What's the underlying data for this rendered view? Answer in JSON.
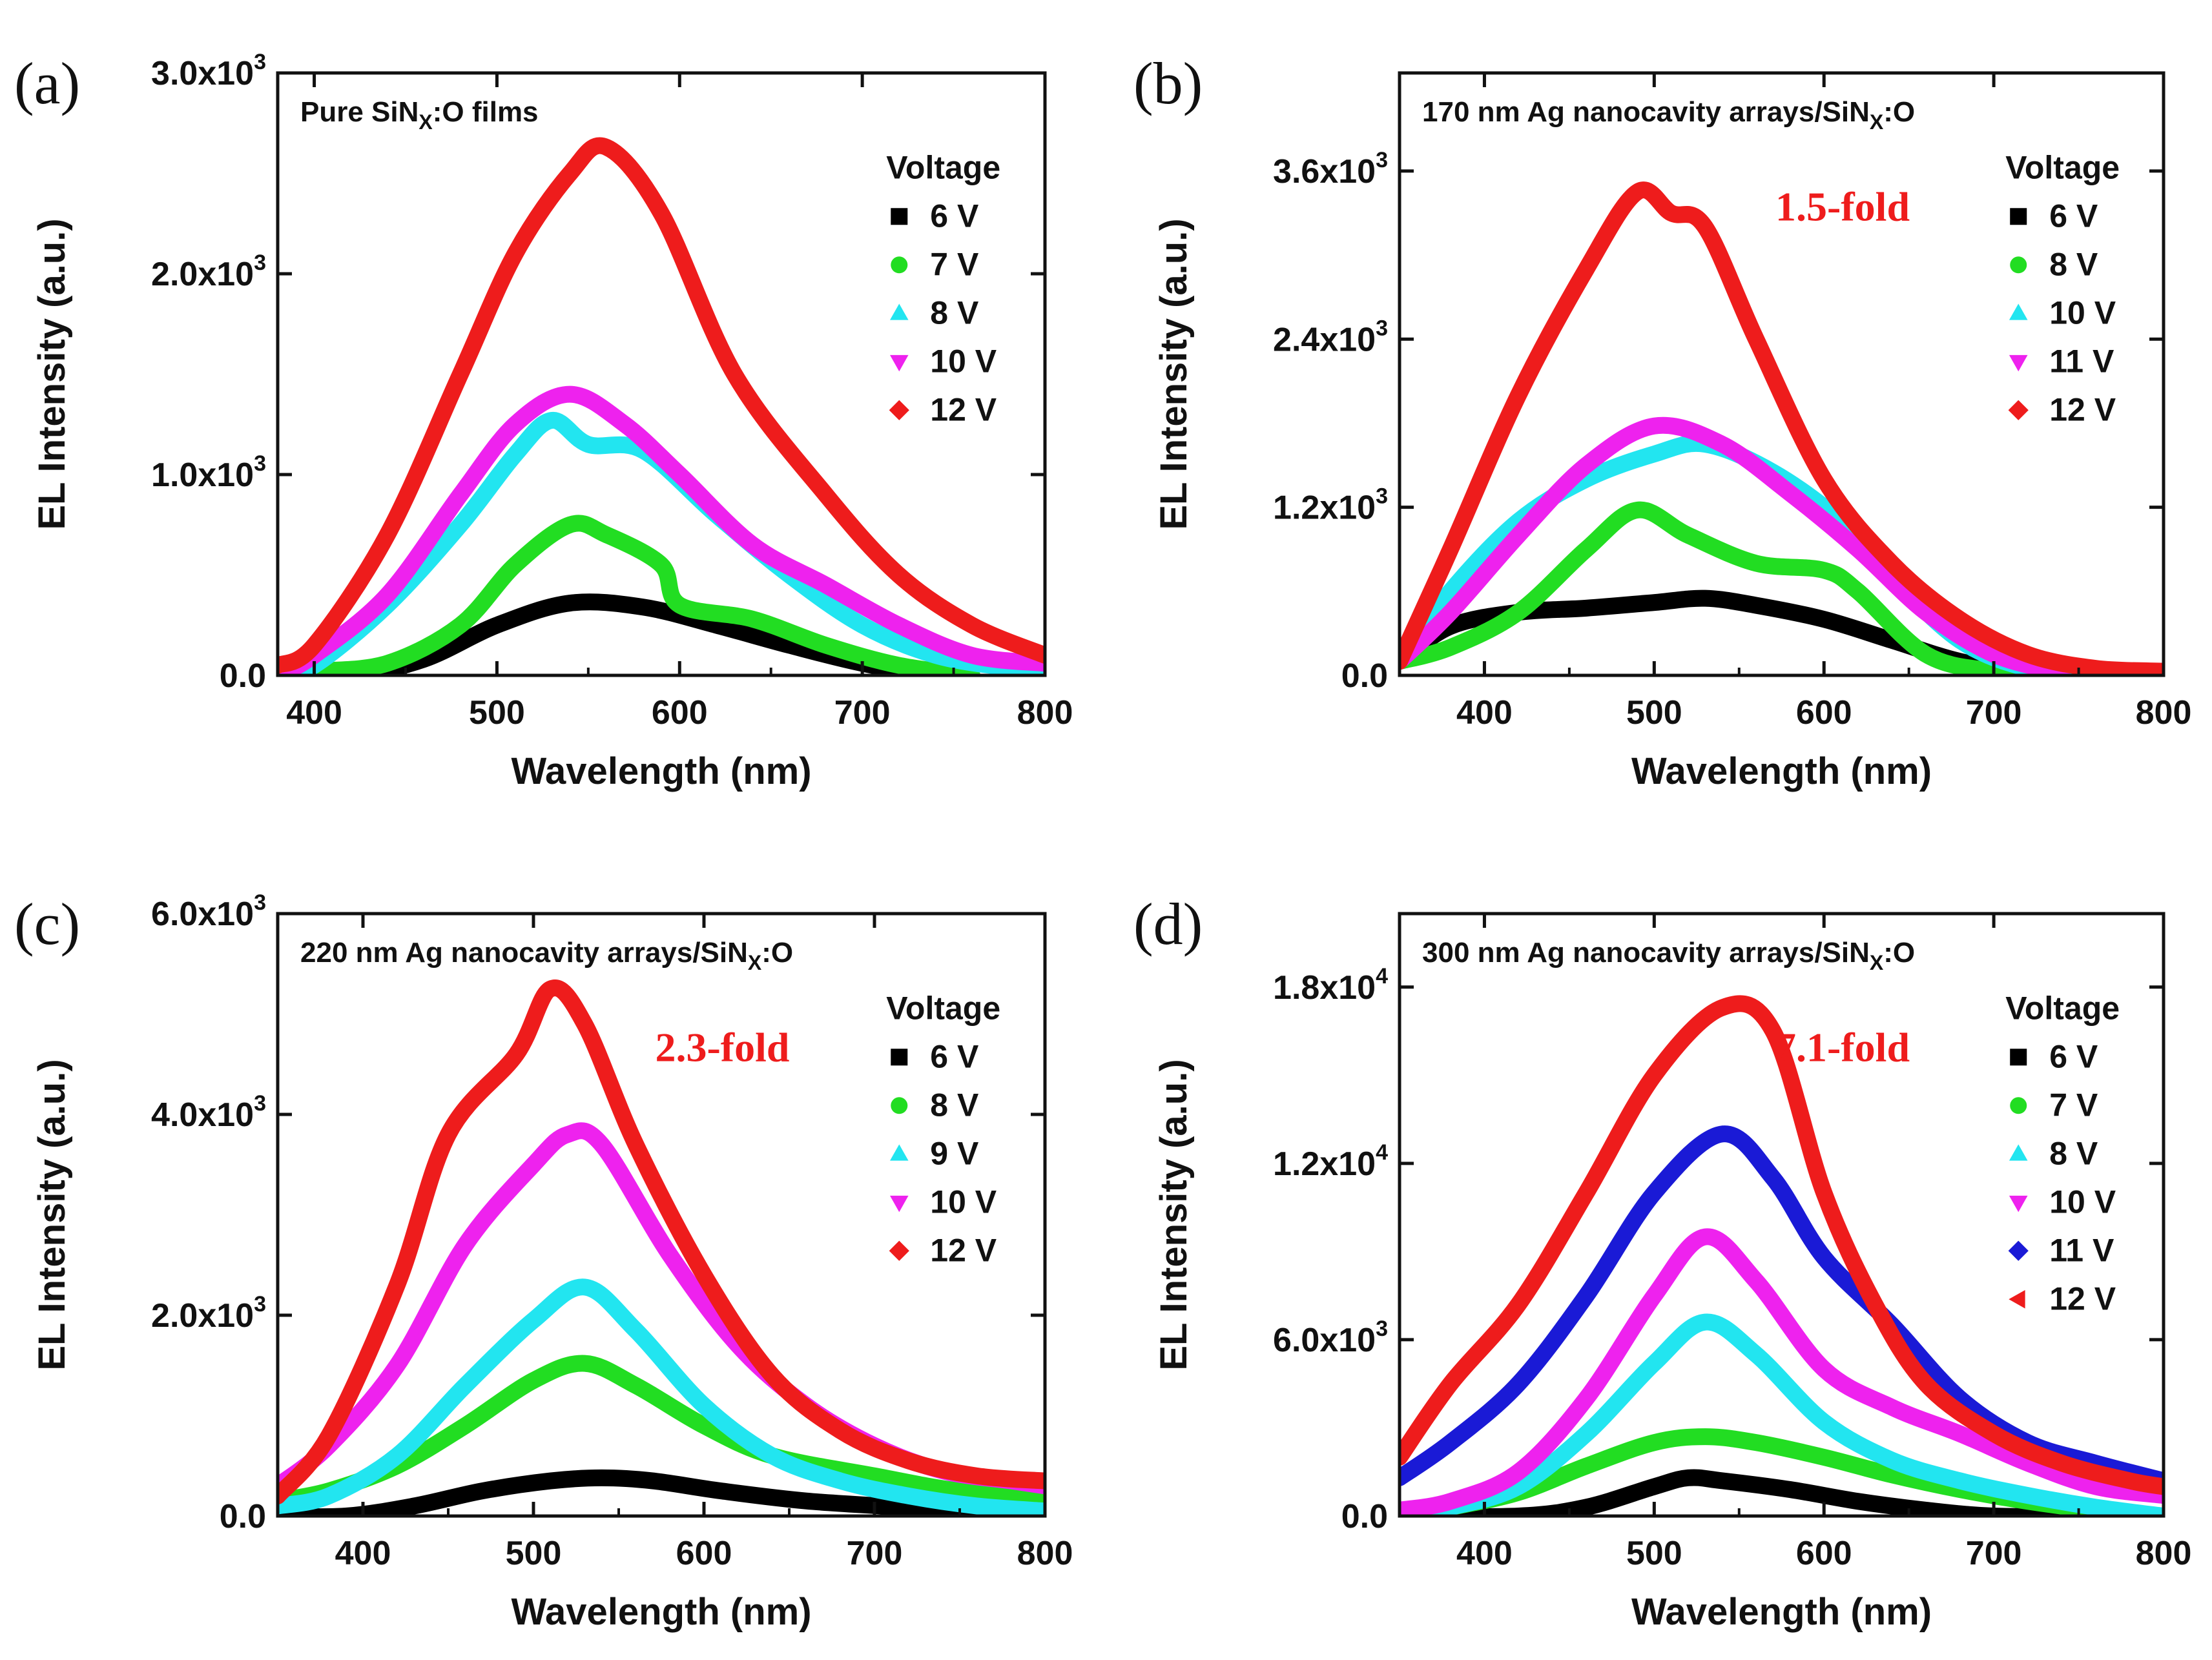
{
  "chart_data": [
    {
      "type": "line",
      "panel_label": "(a)",
      "title": "Pure SiNx:O films",
      "title_main": "Pure SiN",
      "title_sub": "X",
      "title_tail": ":O films",
      "annotation": "",
      "xlabel": "Wavelength (nm)",
      "ylabel": "EL Intensity (a.u.)",
      "xlim": [
        380,
        800
      ],
      "ylim": [
        0,
        3000
      ],
      "xticks": [
        400,
        500,
        600,
        700,
        800
      ],
      "xtick_labels": [
        "400",
        "500",
        "600",
        "700",
        "800"
      ],
      "yticks": [
        0,
        1000,
        2000,
        3000
      ],
      "ytick_labels": [
        {
          "mant": "0.0",
          "exp": ""
        },
        {
          "mant": "1.0x10",
          "exp": "3"
        },
        {
          "mant": "2.0x10",
          "exp": "3"
        },
        {
          "mant": "3.0x10",
          "exp": "3"
        }
      ],
      "legend_title": "Voltage",
      "legend_position": "top-right",
      "series": [
        {
          "name": "6 V",
          "color": "#000000",
          "marker": "square",
          "x": [
            380,
            420,
            460,
            500,
            540,
            580,
            620,
            660,
            700,
            740,
            760
          ],
          "values": [
            0,
            0,
            80,
            250,
            360,
            340,
            250,
            150,
            60,
            0,
            0
          ]
        },
        {
          "name": "7 V",
          "color": "#22dd22",
          "marker": "circle",
          "x": [
            380,
            400,
            440,
            480,
            510,
            540,
            560,
            590,
            600,
            640,
            680,
            720,
            760
          ],
          "values": [
            0,
            20,
            60,
            250,
            550,
            750,
            700,
            550,
            350,
            280,
            150,
            50,
            0
          ]
        },
        {
          "name": "8 V",
          "color": "#22e5f0",
          "marker": "triangle-up",
          "x": [
            380,
            400,
            440,
            480,
            510,
            530,
            550,
            580,
            620,
            660,
            700,
            740,
            780,
            800
          ],
          "values": [
            0,
            50,
            350,
            750,
            1100,
            1270,
            1150,
            1120,
            800,
            500,
            250,
            100,
            40,
            40
          ]
        },
        {
          "name": "10 V",
          "color": "#ee22ee",
          "marker": "triangle-down",
          "x": [
            380,
            400,
            440,
            480,
            510,
            540,
            570,
            600,
            640,
            680,
            720,
            760,
            800
          ],
          "values": [
            0,
            100,
            400,
            900,
            1250,
            1400,
            1250,
            1000,
            650,
            450,
            250,
            100,
            60
          ]
        },
        {
          "name": "12 V",
          "color": "#ee1c1c",
          "marker": "diamond",
          "x": [
            380,
            400,
            440,
            480,
            510,
            540,
            560,
            590,
            630,
            680,
            720,
            760,
            800
          ],
          "values": [
            50,
            150,
            700,
            1500,
            2100,
            2500,
            2630,
            2300,
            1500,
            900,
            500,
            250,
            100
          ]
        }
      ]
    },
    {
      "type": "line",
      "panel_label": "(b)",
      "title": "170 nm Ag nanocavity arrays/SiNx:O",
      "title_main": "170 nm Ag nanocavity arrays/SiN",
      "title_sub": "X",
      "title_tail": ":O",
      "annotation": "1.5-fold",
      "xlabel": "Wavelength (nm)",
      "ylabel": "EL Intensity (a.u.)",
      "xlim": [
        350,
        800
      ],
      "ylim": [
        0,
        4300
      ],
      "xticks": [
        400,
        500,
        600,
        700,
        800
      ],
      "xtick_labels": [
        "400",
        "500",
        "600",
        "700",
        "800"
      ],
      "yticks": [
        0,
        1200,
        2400,
        3600
      ],
      "ytick_labels": [
        {
          "mant": "0.0",
          "exp": ""
        },
        {
          "mant": "1.2x10",
          "exp": "3"
        },
        {
          "mant": "2.4x10",
          "exp": "3"
        },
        {
          "mant": "3.6x10",
          "exp": "3"
        }
      ],
      "legend_title": "Voltage",
      "legend_position": "top-right",
      "series": [
        {
          "name": "6 V",
          "color": "#000000",
          "marker": "square",
          "x": [
            350,
            380,
            420,
            460,
            500,
            530,
            560,
            600,
            640,
            680,
            720,
            760
          ],
          "values": [
            100,
            350,
            450,
            480,
            520,
            550,
            500,
            400,
            250,
            100,
            20,
            0
          ]
        },
        {
          "name": "8 V",
          "color": "#22dd22",
          "marker": "circle",
          "x": [
            350,
            380,
            420,
            460,
            490,
            520,
            560,
            600,
            620,
            660,
            700,
            740
          ],
          "values": [
            100,
            200,
            450,
            900,
            1180,
            1000,
            800,
            750,
            600,
            150,
            30,
            0
          ]
        },
        {
          "name": "10 V",
          "color": "#22e5f0",
          "marker": "triangle-up",
          "x": [
            350,
            380,
            420,
            460,
            500,
            530,
            570,
            610,
            640,
            680,
            720,
            760
          ],
          "values": [
            100,
            600,
            1100,
            1400,
            1580,
            1650,
            1450,
            1100,
            700,
            250,
            50,
            0
          ]
        },
        {
          "name": "11 V",
          "color": "#ee22ee",
          "marker": "triangle-down",
          "x": [
            350,
            380,
            420,
            460,
            500,
            540,
            580,
            620,
            660,
            700,
            740
          ],
          "values": [
            100,
            450,
            1000,
            1500,
            1780,
            1650,
            1300,
            900,
            450,
            150,
            20
          ]
        },
        {
          "name": "12 V",
          "color": "#ee1c1c",
          "marker": "diamond",
          "x": [
            350,
            380,
            420,
            460,
            490,
            510,
            530,
            560,
            600,
            640,
            680,
            720,
            760,
            800
          ],
          "values": [
            100,
            900,
            2000,
            2900,
            3450,
            3300,
            3200,
            2400,
            1400,
            800,
            400,
            150,
            50,
            30
          ]
        }
      ]
    },
    {
      "type": "line",
      "panel_label": "(c)",
      "title": "220 nm Ag nanocavity arrays/SiNx:O",
      "title_main": "220 nm Ag nanocavity arrays/SiN",
      "title_sub": "X",
      "title_tail": ":O",
      "annotation": "2.3-fold",
      "xlabel": "Wavelength (nm)",
      "ylabel": "EL Intensity (a.u.)",
      "xlim": [
        350,
        800
      ],
      "ylim": [
        0,
        6000
      ],
      "xticks": [
        400,
        500,
        600,
        700,
        800
      ],
      "xtick_labels": [
        "400",
        "500",
        "600",
        "700",
        "800"
      ],
      "yticks": [
        0,
        2000,
        4000,
        6000
      ],
      "ytick_labels": [
        {
          "mant": "0.0",
          "exp": ""
        },
        {
          "mant": "2.0x10",
          "exp": "3"
        },
        {
          "mant": "4.0x10",
          "exp": "3"
        },
        {
          "mant": "6.0x10",
          "exp": "3"
        }
      ],
      "legend_title": "Voltage",
      "legend_position": "top-right",
      "series": [
        {
          "name": "6 V",
          "color": "#000000",
          "marker": "square",
          "x": [
            350,
            390,
            430,
            470,
            510,
            540,
            570,
            610,
            660,
            720,
            760,
            800
          ],
          "values": [
            0,
            0,
            100,
            250,
            350,
            380,
            350,
            250,
            150,
            80,
            0,
            0
          ]
        },
        {
          "name": "8 V",
          "color": "#22dd22",
          "marker": "circle",
          "x": [
            350,
            380,
            420,
            460,
            500,
            530,
            560,
            600,
            640,
            700,
            750,
            800
          ],
          "values": [
            150,
            250,
            500,
            900,
            1350,
            1520,
            1300,
            900,
            600,
            400,
            250,
            200
          ]
        },
        {
          "name": "9 V",
          "color": "#22e5f0",
          "marker": "triangle-up",
          "x": [
            350,
            380,
            420,
            460,
            500,
            530,
            560,
            600,
            640,
            680,
            720,
            760,
            800
          ],
          "values": [
            100,
            200,
            600,
            1300,
            1950,
            2280,
            1850,
            1100,
            600,
            350,
            200,
            100,
            50
          ]
        },
        {
          "name": "10 V",
          "color": "#ee22ee",
          "marker": "triangle-down",
          "x": [
            350,
            380,
            420,
            460,
            500,
            520,
            540,
            580,
            620,
            660,
            700,
            740,
            780,
            800
          ],
          "values": [
            300,
            700,
            1500,
            2700,
            3500,
            3800,
            3700,
            2600,
            1700,
            1100,
            700,
            450,
            350,
            300
          ]
        },
        {
          "name": "12 V",
          "color": "#ee1c1c",
          "marker": "diamond",
          "x": [
            350,
            380,
            420,
            450,
            490,
            510,
            530,
            560,
            600,
            640,
            680,
            720,
            760,
            800
          ],
          "values": [
            200,
            800,
            2300,
            3800,
            4600,
            5250,
            4900,
            3700,
            2400,
            1400,
            850,
            550,
            400,
            350
          ]
        }
      ]
    },
    {
      "type": "line",
      "panel_label": "(d)",
      "title": "300 nm Ag nanocavity arrays/SiNx:O",
      "title_main": "300 nm Ag nanocavity arrays/SiN",
      "title_sub": "X",
      "title_tail": ":O",
      "annotation": "7.1-fold",
      "xlabel": "Wavelength (nm)",
      "ylabel": "EL Intensity (a.u.)",
      "xlim": [
        350,
        800
      ],
      "ylim": [
        0,
        20500
      ],
      "xticks": [
        400,
        500,
        600,
        700,
        800
      ],
      "xtick_labels": [
        "400",
        "500",
        "600",
        "700",
        "800"
      ],
      "yticks": [
        0,
        6000,
        12000,
        18000
      ],
      "ytick_labels": [
        {
          "mant": "0.0",
          "exp": ""
        },
        {
          "mant": "6.0x10",
          "exp": "3"
        },
        {
          "mant": "1.2x10",
          "exp": "4"
        },
        {
          "mant": "1.8x10",
          "exp": "4"
        }
      ],
      "legend_title": "Voltage",
      "legend_position": "top-right",
      "series": [
        {
          "name": "6 V",
          "color": "#000000",
          "marker": "square",
          "x": [
            350,
            420,
            460,
            500,
            520,
            540,
            580,
            620,
            660,
            700,
            750
          ],
          "values": [
            0,
            0,
            300,
            1000,
            1300,
            1200,
            900,
            500,
            200,
            0,
            0
          ]
        },
        {
          "name": "7 V",
          "color": "#22dd22",
          "marker": "circle",
          "x": [
            350,
            380,
            420,
            460,
            500,
            530,
            560,
            600,
            640,
            680,
            720,
            760,
            800
          ],
          "values": [
            0,
            300,
            800,
            1700,
            2500,
            2700,
            2500,
            2000,
            1400,
            900,
            500,
            200,
            0
          ]
        },
        {
          "name": "8 V",
          "color": "#22e5f0",
          "marker": "triangle-up",
          "x": [
            350,
            380,
            420,
            460,
            500,
            530,
            560,
            600,
            640,
            680,
            720,
            760,
            800
          ],
          "values": [
            0,
            300,
            1000,
            2800,
            5200,
            6600,
            5500,
            3200,
            1900,
            1200,
            700,
            300,
            0
          ]
        },
        {
          "name": "10 V",
          "color": "#ee22ee",
          "marker": "triangle-down",
          "x": [
            350,
            380,
            420,
            460,
            500,
            530,
            560,
            600,
            640,
            680,
            720,
            760,
            800
          ],
          "values": [
            200,
            500,
            1500,
            4000,
            7500,
            9500,
            8000,
            5000,
            3700,
            2800,
            1800,
            1000,
            700
          ]
        },
        {
          "name": "11 V",
          "color": "#1a1ad6",
          "marker": "diamond",
          "x": [
            350,
            380,
            420,
            460,
            500,
            540,
            570,
            600,
            640,
            680,
            720,
            760,
            800
          ],
          "values": [
            1300,
            2500,
            4500,
            7500,
            11000,
            13000,
            11500,
            8800,
            6500,
            4000,
            2500,
            1800,
            1200
          ]
        },
        {
          "name": "12 V",
          "color": "#ee1c1c",
          "marker": "triangle-left",
          "x": [
            350,
            380,
            420,
            460,
            500,
            540,
            570,
            600,
            630,
            660,
            700,
            740,
            780,
            800
          ],
          "values": [
            2000,
            4500,
            7200,
            11000,
            15000,
            17300,
            16500,
            11000,
            7200,
            4500,
            2800,
            1800,
            1200,
            1000
          ]
        }
      ]
    }
  ]
}
